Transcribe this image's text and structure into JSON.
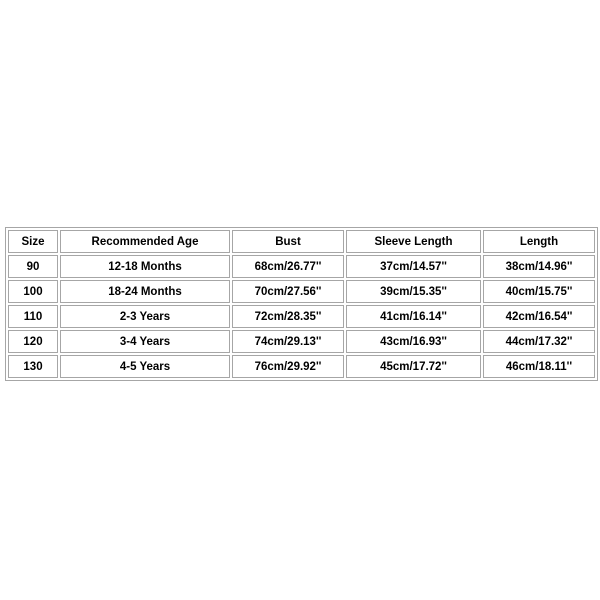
{
  "page": {
    "background_color": "#ffffff"
  },
  "size_chart": {
    "border_color": "#a6a6a6",
    "text_color": "#000000",
    "columns": [
      "Size",
      "Recommended Age",
      "Bust",
      "Sleeve Length",
      "Length"
    ],
    "rows": [
      [
        "90",
        "12-18 Months",
        "68cm/26.77''",
        "37cm/14.57''",
        "38cm/14.96''"
      ],
      [
        "100",
        "18-24 Months",
        "70cm/27.56''",
        "39cm/15.35''",
        "40cm/15.75''"
      ],
      [
        "110",
        "2-3 Years",
        "72cm/28.35''",
        "41cm/16.14''",
        "42cm/16.54''"
      ],
      [
        "120",
        "3-4 Years",
        "74cm/29.13''",
        "43cm/16.93''",
        "44cm/17.32''"
      ],
      [
        "130",
        "4-5 Years",
        "76cm/29.92''",
        "45cm/17.72''",
        "46cm/18.11''"
      ]
    ]
  }
}
